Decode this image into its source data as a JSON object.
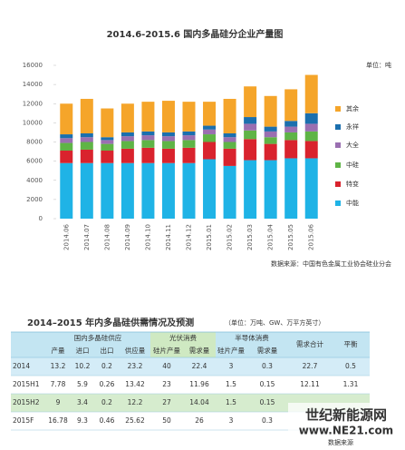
{
  "chart_data": {
    "type": "bar",
    "stacked": true,
    "title": "2014.6-2015.6 国内多晶硅分企业产量图",
    "unit": "单位：吨",
    "source": "数据来源：中国有色金属工业协会硅业分会",
    "categories": [
      "2014.06",
      "2014.07",
      "2014.08",
      "2014.09",
      "2014.10",
      "2014.11",
      "2014.12",
      "2015.01",
      "2015.02",
      "2015.03",
      "2015.04",
      "2015.05",
      "2015.06"
    ],
    "series": [
      {
        "name": "中能",
        "color": "#1fb3e6",
        "values": [
          5800,
          5800,
          5800,
          5800,
          5800,
          5800,
          5800,
          6200,
          5500,
          6100,
          6100,
          6300,
          6300
        ]
      },
      {
        "name": "特变",
        "color": "#d9232d",
        "values": [
          1300,
          1400,
          1300,
          1500,
          1600,
          1500,
          1600,
          1800,
          1800,
          2200,
          1700,
          1900,
          1800
        ]
      },
      {
        "name": "中硅",
        "color": "#5fb446",
        "values": [
          800,
          800,
          700,
          800,
          800,
          800,
          800,
          800,
          700,
          900,
          700,
          800,
          1000
        ]
      },
      {
        "name": "大全",
        "color": "#9a6fb1",
        "values": [
          500,
          500,
          400,
          500,
          500,
          500,
          500,
          500,
          500,
          700,
          600,
          600,
          800
        ]
      },
      {
        "name": "永祥",
        "color": "#1b6fae",
        "values": [
          400,
          400,
          300,
          400,
          400,
          400,
          400,
          400,
          400,
          700,
          500,
          600,
          1100
        ]
      },
      {
        "name": "其余",
        "color": "#f5a52a",
        "values": [
          3200,
          3600,
          3000,
          3000,
          3100,
          3300,
          3100,
          2500,
          3600,
          3200,
          3200,
          3300,
          4000
        ]
      }
    ],
    "ylim": [
      0,
      16000
    ],
    "yticks": [
      0,
      2000,
      4000,
      6000,
      8000,
      10000,
      12000,
      14000,
      16000
    ]
  },
  "table": {
    "title": "2014–2015 年内多晶硅供需情况及预测",
    "subtitle": "（单位：万吨、GW、万平方英寸）",
    "groups": [
      "国内多晶硅供应",
      "光伏消费",
      "半导体消费",
      "需求合计",
      "平衡"
    ],
    "columns": [
      "产量",
      "进口",
      "出口",
      "供应量",
      "硅片产量",
      "需求量",
      "硅片产量",
      "需求量"
    ],
    "rows": [
      [
        "2014",
        "13.2",
        "10.2",
        "0.2",
        "23.2",
        "40",
        "22.4",
        "3",
        "0.3",
        "22.7",
        "0.5"
      ],
      [
        "2015H1",
        "7.78",
        "5.9",
        "0.26",
        "13.42",
        "23",
        "11.96",
        "1.5",
        "0.15",
        "12.11",
        "1.31"
      ],
      [
        "2015H2",
        "9",
        "3.4",
        "0.2",
        "12.2",
        "27",
        "14.04",
        "1.5",
        "0.15"
      ],
      [
        "2015F",
        "16.78",
        "9.3",
        "0.46",
        "25.62",
        "50",
        "26",
        "3",
        "0.3"
      ]
    ],
    "source": "数据来源"
  },
  "watermark": {
    "name": "世纪新能源网",
    "url": "www.NE21.com"
  }
}
